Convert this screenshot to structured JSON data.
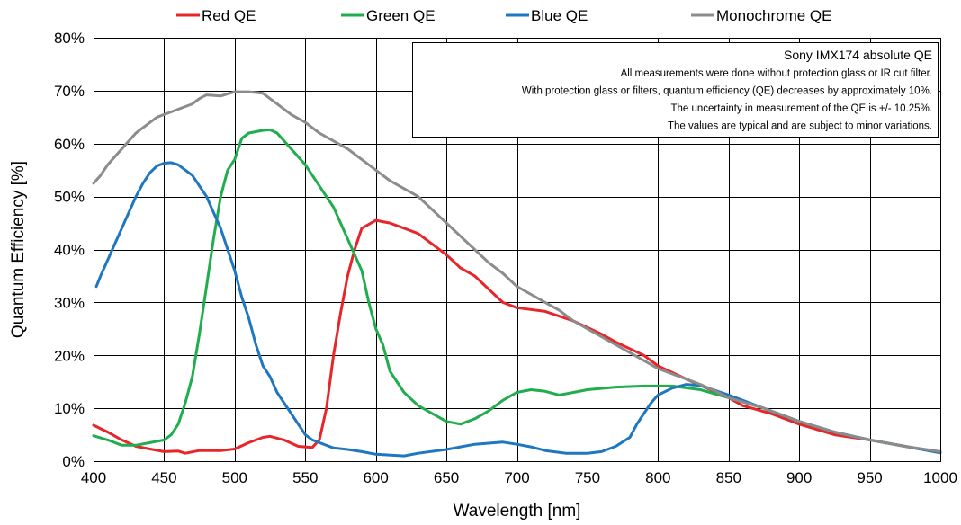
{
  "chart_data": {
    "type": "line",
    "title": "",
    "xlabel": "Wavelength [nm]",
    "ylabel": "Quantum Efficiency [%]",
    "xlim": [
      400,
      1000
    ],
    "ylim": [
      0,
      80
    ],
    "x_ticks": [
      "400",
      "450",
      "500",
      "550",
      "600",
      "650",
      "700",
      "750",
      "800",
      "850",
      "900",
      "950",
      "1000"
    ],
    "y_ticks": [
      "0%",
      "10%",
      "20%",
      "30%",
      "40%",
      "50%",
      "60%",
      "70%",
      "80%"
    ],
    "grid": true,
    "legend_position": "top",
    "series": [
      {
        "name": "Red QE",
        "color": "#e8262a",
        "points": [
          [
            400,
            6.8
          ],
          [
            410,
            5.5
          ],
          [
            420,
            4.0
          ],
          [
            430,
            2.8
          ],
          [
            440,
            2.3
          ],
          [
            450,
            1.8
          ],
          [
            460,
            1.9
          ],
          [
            465,
            1.5
          ],
          [
            475,
            2.0
          ],
          [
            490,
            2.0
          ],
          [
            500,
            2.3
          ],
          [
            510,
            3.5
          ],
          [
            520,
            4.5
          ],
          [
            525,
            4.7
          ],
          [
            535,
            4.0
          ],
          [
            545,
            2.8
          ],
          [
            555,
            2.6
          ],
          [
            560,
            4.0
          ],
          [
            565,
            10
          ],
          [
            570,
            20
          ],
          [
            575,
            28
          ],
          [
            580,
            35
          ],
          [
            585,
            40
          ],
          [
            590,
            44
          ],
          [
            600,
            45.5
          ],
          [
            610,
            45
          ],
          [
            620,
            44
          ],
          [
            630,
            43
          ],
          [
            640,
            41
          ],
          [
            650,
            39
          ],
          [
            660,
            36.5
          ],
          [
            670,
            35
          ],
          [
            680,
            32.5
          ],
          [
            690,
            30
          ],
          [
            700,
            29
          ],
          [
            720,
            28.3
          ],
          [
            740,
            26.5
          ],
          [
            760,
            24
          ],
          [
            770,
            22.5
          ],
          [
            790,
            20
          ],
          [
            800,
            18
          ],
          [
            820,
            15.5
          ],
          [
            850,
            12
          ],
          [
            860,
            10.5
          ],
          [
            880,
            9
          ],
          [
            900,
            7
          ],
          [
            925,
            5
          ],
          [
            950,
            4
          ],
          [
            975,
            2.8
          ],
          [
            1000,
            1.6
          ]
        ]
      },
      {
        "name": "Green QE",
        "color": "#1fad4e",
        "points": [
          [
            400,
            4.8
          ],
          [
            410,
            4.0
          ],
          [
            420,
            3.0
          ],
          [
            430,
            3.0
          ],
          [
            440,
            3.5
          ],
          [
            450,
            4.0
          ],
          [
            455,
            5.0
          ],
          [
            460,
            7.0
          ],
          [
            465,
            11
          ],
          [
            470,
            16
          ],
          [
            475,
            24
          ],
          [
            480,
            33
          ],
          [
            485,
            42
          ],
          [
            490,
            50
          ],
          [
            495,
            55
          ],
          [
            500,
            57
          ],
          [
            505,
            61
          ],
          [
            510,
            62
          ],
          [
            520,
            62.5
          ],
          [
            525,
            62.6
          ],
          [
            530,
            62
          ],
          [
            540,
            59
          ],
          [
            550,
            56
          ],
          [
            560,
            52
          ],
          [
            570,
            48
          ],
          [
            580,
            42
          ],
          [
            590,
            36
          ],
          [
            595,
            30
          ],
          [
            600,
            25
          ],
          [
            605,
            22
          ],
          [
            610,
            17
          ],
          [
            620,
            13
          ],
          [
            630,
            10.5
          ],
          [
            640,
            9
          ],
          [
            650,
            7.5
          ],
          [
            660,
            7.0
          ],
          [
            670,
            8
          ],
          [
            680,
            9.5
          ],
          [
            690,
            11.5
          ],
          [
            700,
            13
          ],
          [
            710,
            13.5
          ],
          [
            720,
            13.2
          ],
          [
            730,
            12.5
          ],
          [
            740,
            13
          ],
          [
            750,
            13.5
          ],
          [
            770,
            14
          ],
          [
            790,
            14.2
          ],
          [
            810,
            14.2
          ],
          [
            830,
            13.5
          ],
          [
            850,
            12
          ],
          [
            875,
            10
          ],
          [
            900,
            7.5
          ],
          [
            925,
            5.5
          ],
          [
            950,
            4
          ],
          [
            975,
            2.8
          ],
          [
            1000,
            1.6
          ]
        ]
      },
      {
        "name": "Blue QE",
        "color": "#1f77c0",
        "points": [
          [
            402,
            33
          ],
          [
            405,
            35
          ],
          [
            410,
            38
          ],
          [
            415,
            41
          ],
          [
            420,
            44
          ],
          [
            425,
            47
          ],
          [
            430,
            50
          ],
          [
            435,
            52.5
          ],
          [
            440,
            54.5
          ],
          [
            445,
            55.8
          ],
          [
            450,
            56.3
          ],
          [
            455,
            56.4
          ],
          [
            460,
            56
          ],
          [
            465,
            55
          ],
          [
            470,
            54
          ],
          [
            475,
            52
          ],
          [
            480,
            50
          ],
          [
            485,
            47
          ],
          [
            490,
            44
          ],
          [
            495,
            40
          ],
          [
            500,
            36
          ],
          [
            505,
            31
          ],
          [
            510,
            27
          ],
          [
            515,
            22
          ],
          [
            520,
            18
          ],
          [
            525,
            16
          ],
          [
            530,
            13
          ],
          [
            535,
            11
          ],
          [
            540,
            9
          ],
          [
            545,
            7
          ],
          [
            550,
            5
          ],
          [
            555,
            4
          ],
          [
            560,
            3.5
          ],
          [
            570,
            2.5
          ],
          [
            580,
            2.2
          ],
          [
            590,
            1.8
          ],
          [
            600,
            1.3
          ],
          [
            620,
            1.0
          ],
          [
            630,
            1.5
          ],
          [
            650,
            2.2
          ],
          [
            670,
            3.2
          ],
          [
            690,
            3.6
          ],
          [
            700,
            3.2
          ],
          [
            710,
            2.7
          ],
          [
            720,
            2.0
          ],
          [
            735,
            1.5
          ],
          [
            750,
            1.5
          ],
          [
            760,
            1.8
          ],
          [
            770,
            2.8
          ],
          [
            780,
            4.5
          ],
          [
            785,
            7
          ],
          [
            790,
            9
          ],
          [
            795,
            11
          ],
          [
            800,
            12.5
          ],
          [
            810,
            13.8
          ],
          [
            820,
            14.5
          ],
          [
            830,
            14.3
          ],
          [
            850,
            12.5
          ],
          [
            875,
            10
          ],
          [
            900,
            7.5
          ],
          [
            925,
            5.5
          ],
          [
            950,
            4
          ],
          [
            975,
            2.8
          ],
          [
            1000,
            1.6
          ]
        ]
      },
      {
        "name": "Monochrome QE",
        "color": "#8c8c8c",
        "points": [
          [
            400,
            52.5
          ],
          [
            405,
            54
          ],
          [
            410,
            56
          ],
          [
            415,
            57.5
          ],
          [
            420,
            59
          ],
          [
            425,
            60.5
          ],
          [
            430,
            62
          ],
          [
            435,
            63
          ],
          [
            440,
            64
          ],
          [
            445,
            65
          ],
          [
            450,
            65.5
          ],
          [
            460,
            66.5
          ],
          [
            470,
            67.5
          ],
          [
            475,
            68.5
          ],
          [
            480,
            69.2
          ],
          [
            490,
            69
          ],
          [
            500,
            69.8
          ],
          [
            510,
            69.8
          ],
          [
            520,
            69.5
          ],
          [
            530,
            67.5
          ],
          [
            540,
            65.5
          ],
          [
            550,
            64
          ],
          [
            560,
            62
          ],
          [
            570,
            60.5
          ],
          [
            580,
            59
          ],
          [
            590,
            57
          ],
          [
            600,
            55
          ],
          [
            610,
            53
          ],
          [
            620,
            51.5
          ],
          [
            630,
            50
          ],
          [
            640,
            47.5
          ],
          [
            650,
            45
          ],
          [
            660,
            42.5
          ],
          [
            670,
            40
          ],
          [
            680,
            37.5
          ],
          [
            690,
            35.5
          ],
          [
            700,
            33
          ],
          [
            710,
            31.5
          ],
          [
            720,
            30
          ],
          [
            730,
            28.5
          ],
          [
            740,
            26.5
          ],
          [
            750,
            25
          ],
          [
            760,
            23.5
          ],
          [
            770,
            22
          ],
          [
            780,
            20.5
          ],
          [
            790,
            19
          ],
          [
            800,
            17.5
          ],
          [
            810,
            16.5
          ],
          [
            820,
            15.5
          ],
          [
            830,
            14.5
          ],
          [
            840,
            13.3
          ],
          [
            850,
            12
          ],
          [
            875,
            10
          ],
          [
            900,
            7.5
          ],
          [
            925,
            5.5
          ],
          [
            950,
            4
          ],
          [
            975,
            2.8
          ],
          [
            1000,
            1.8
          ]
        ]
      }
    ],
    "annotation": {
      "title": "Sony IMX174 absolute QE",
      "lines": [
        "All measurements were done without protection glass or IR cut filter.",
        "With protection glass or filters, quantum efficiency (QE) decreases by approximately 10%.",
        "The uncertainty in measurement of the QE is +/- 10.25%.",
        "The values are typical and are subject to minor variations."
      ]
    }
  }
}
